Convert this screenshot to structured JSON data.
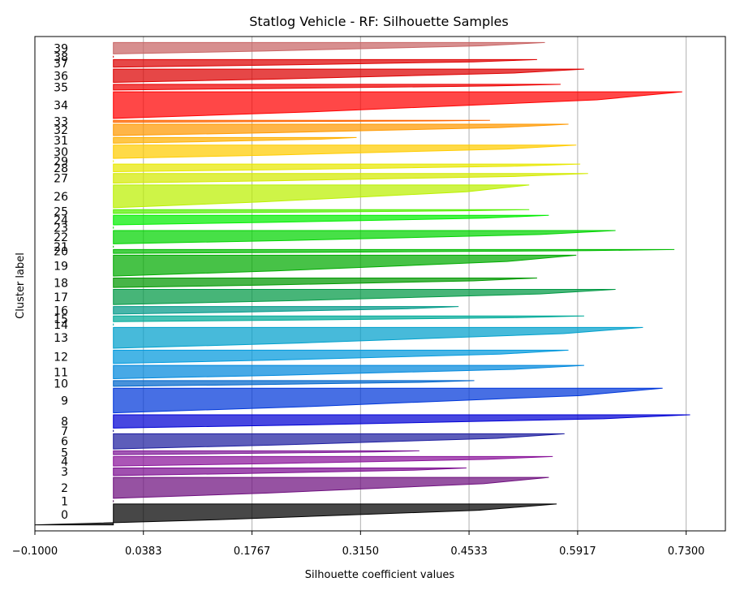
{
  "chart_data": {
    "type": "area",
    "title": "Statlog Vehicle - RF: Silhouette Samples",
    "xlabel": "Silhouette coefficient values",
    "ylabel": "Cluster label",
    "xlim": [
      -0.1,
      0.78
    ],
    "x_ticks": [
      -0.1,
      0.0383,
      0.1767,
      0.315,
      0.4533,
      0.5917,
      0.73
    ],
    "x_tick_labels": [
      "−0.1000",
      "0.0383",
      "0.1767",
      "0.3150",
      "0.4533",
      "0.5917",
      "0.7300"
    ],
    "grid": "vertical",
    "series": [
      {
        "label": "0",
        "size": 22,
        "min": -0.1,
        "max": 0.565,
        "color": "#000000"
      },
      {
        "label": "1",
        "size": 2,
        "min": 0.0,
        "max": 0.0,
        "color": "#410a4a"
      },
      {
        "label": "2",
        "size": 22,
        "min": 0.0,
        "max": 0.555,
        "color": "#6e0f7e"
      },
      {
        "label": "3",
        "size": 8,
        "min": 0.0,
        "max": 0.45,
        "color": "#7c0c90"
      },
      {
        "label": "4",
        "size": 10,
        "min": 0.0,
        "max": 0.56,
        "color": "#8a149a"
      },
      {
        "label": "5",
        "size": 4,
        "min": 0.0,
        "max": 0.39,
        "color": "#7e1897"
      },
      {
        "label": "6",
        "size": 16,
        "min": 0.0,
        "max": 0.575,
        "color": "#1e1ea0"
      },
      {
        "label": "7",
        "size": 2,
        "min": 0.0,
        "max": 0.0,
        "color": "#0b0b8c"
      },
      {
        "label": "8",
        "size": 14,
        "min": 0.0,
        "max": 0.735,
        "color": "#0000d4"
      },
      {
        "label": "9",
        "size": 26,
        "min": 0.0,
        "max": 0.7,
        "color": "#0037da"
      },
      {
        "label": "10",
        "size": 6,
        "min": 0.0,
        "max": 0.46,
        "color": "#0066cc"
      },
      {
        "label": "11",
        "size": 14,
        "min": 0.0,
        "max": 0.6,
        "color": "#0088dd"
      },
      {
        "label": "12",
        "size": 14,
        "min": 0.0,
        "max": 0.58,
        "color": "#0099dd"
      },
      {
        "label": "13",
        "size": 22,
        "min": 0.0,
        "max": 0.675,
        "color": "#00a0cc"
      },
      {
        "label": "14",
        "size": 2,
        "min": 0.0,
        "max": 0.0,
        "color": "#00aaaa"
      },
      {
        "label": "15",
        "size": 6,
        "min": 0.0,
        "max": 0.6,
        "color": "#00aa99"
      },
      {
        "label": "16",
        "size": 8,
        "min": 0.0,
        "max": 0.44,
        "color": "#009988"
      },
      {
        "label": "17",
        "size": 16,
        "min": 0.0,
        "max": 0.64,
        "color": "#009944"
      },
      {
        "label": "18",
        "size": 10,
        "min": 0.0,
        "max": 0.54,
        "color": "#009900"
      },
      {
        "label": "19",
        "size": 22,
        "min": 0.0,
        "max": 0.59,
        "color": "#00aa00"
      },
      {
        "label": "20",
        "size": 4,
        "min": 0.0,
        "max": 0.715,
        "color": "#00bb00"
      },
      {
        "label": "21",
        "size": 2,
        "min": 0.0,
        "max": 0.0,
        "color": "#00c800"
      },
      {
        "label": "22",
        "size": 14,
        "min": 0.0,
        "max": 0.64,
        "color": "#00d400"
      },
      {
        "label": "23",
        "size": 2,
        "min": 0.0,
        "max": 0.0,
        "color": "#00e000"
      },
      {
        "label": "24",
        "size": 10,
        "min": 0.0,
        "max": 0.555,
        "color": "#00ee00"
      },
      {
        "label": "25",
        "size": 4,
        "min": 0.0,
        "max": 0.53,
        "color": "#55f000"
      },
      {
        "label": "26",
        "size": 24,
        "min": 0.0,
        "max": 0.53,
        "color": "#bbf000"
      },
      {
        "label": "27",
        "size": 10,
        "min": 0.0,
        "max": 0.605,
        "color": "#d4ea00"
      },
      {
        "label": "28",
        "size": 8,
        "min": 0.0,
        "max": 0.595,
        "color": "#e8e800"
      },
      {
        "label": "29",
        "size": 2,
        "min": 0.0,
        "max": 0.0,
        "color": "#eeee00"
      },
      {
        "label": "30",
        "size": 14,
        "min": 0.0,
        "max": 0.59,
        "color": "#ffcc00"
      },
      {
        "label": "31",
        "size": 6,
        "min": 0.0,
        "max": 0.31,
        "color": "#ffb000"
      },
      {
        "label": "32",
        "size": 12,
        "min": 0.0,
        "max": 0.58,
        "color": "#ff9900"
      },
      {
        "label": "33",
        "size": 2,
        "min": 0.0,
        "max": 0.48,
        "color": "#ff6600"
      },
      {
        "label": "34",
        "size": 28,
        "min": 0.0,
        "max": 0.725,
        "color": "#ff0000"
      },
      {
        "label": "35",
        "size": 6,
        "min": 0.0,
        "max": 0.57,
        "color": "#ee0000"
      },
      {
        "label": "36",
        "size": 14,
        "min": 0.0,
        "max": 0.6,
        "color": "#dd0000"
      },
      {
        "label": "37",
        "size": 8,
        "min": 0.0,
        "max": 0.54,
        "color": "#dd0000"
      },
      {
        "label": "38",
        "size": 2,
        "min": 0.0,
        "max": 0.0,
        "color": "#cc0000"
      },
      {
        "label": "39",
        "size": 12,
        "min": 0.0,
        "max": 0.55,
        "color": "#c86464"
      }
    ]
  }
}
